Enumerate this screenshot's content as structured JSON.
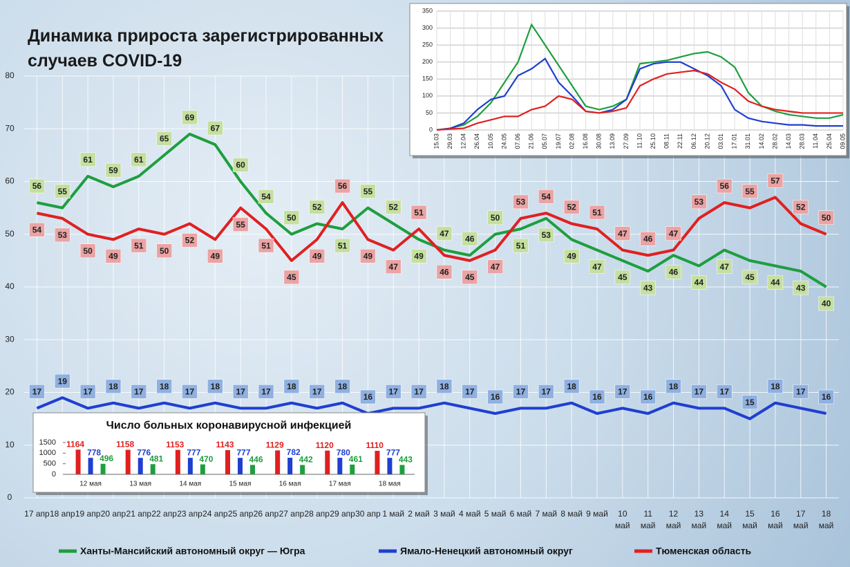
{
  "chart_data": [
    {
      "type": "line",
      "title": "Динамика прироста зарегистрированных случаев COVID-19",
      "categories": [
        "17 апр",
        "18 апр",
        "19 апр",
        "20 апр",
        "21 апр",
        "22 апр",
        "23 апр",
        "24 апр",
        "25 апр",
        "26 апр",
        "27 апр",
        "28 апр",
        "29 апр",
        "30 апр",
        "1 май",
        "2 май",
        "3 май",
        "4 май",
        "5 май",
        "6 май",
        "7 май",
        "8 май",
        "9 май",
        "10 май",
        "11 май",
        "12 май",
        "13 май",
        "14 май",
        "15 май",
        "16 май",
        "17 май",
        "18 май"
      ],
      "series": [
        {
          "name": "Ханты-Мансийский автономный округ — Югра",
          "color": "#1e9e3e",
          "values": [
            56,
            55,
            61,
            59,
            61,
            65,
            69,
            67,
            60,
            54,
            50,
            52,
            51,
            55,
            52,
            49,
            47,
            46,
            50,
            51,
            53,
            49,
            47,
            45,
            43,
            46,
            44,
            47,
            45,
            44,
            43,
            40
          ]
        },
        {
          "name": "Ямало-Ненецкий автономный округ",
          "color": "#1f3fd0",
          "values": [
            17,
            19,
            17,
            18,
            17,
            18,
            17,
            18,
            17,
            17,
            18,
            17,
            18,
            16,
            17,
            17,
            18,
            17,
            16,
            17,
            17,
            18,
            16,
            17,
            16,
            18,
            17,
            17,
            15,
            18,
            17,
            16
          ]
        },
        {
          "name": "Тюменская область",
          "color": "#e02020",
          "values": [
            54,
            53,
            50,
            49,
            51,
            50,
            52,
            49,
            55,
            51,
            45,
            49,
            56,
            49,
            47,
            51,
            46,
            45,
            47,
            53,
            54,
            52,
            51,
            47,
            46,
            47,
            53,
            56,
            55,
            57,
            52,
            50
          ]
        }
      ],
      "ylim": [
        0,
        80
      ],
      "yticks": [
        0,
        10,
        20,
        30,
        40,
        50,
        60,
        70,
        80
      ],
      "grid": true,
      "legend": "bottom"
    },
    {
      "type": "line",
      "categories": [
        "15.03",
        "29.03",
        "12.04",
        "26.04",
        "10.05",
        "24.05",
        "07.06",
        "21.06",
        "05.07",
        "19.07",
        "02.08",
        "16.08",
        "30.08",
        "13.09",
        "27.09",
        "11.10",
        "25.10",
        "08.11",
        "22.11",
        "06.12",
        "20.12",
        "03.01",
        "17.01",
        "31.01",
        "14.02",
        "28.02",
        "14.03",
        "28.03",
        "11.04",
        "25.04",
        "09.05"
      ],
      "series": [
        {
          "color": "#1e9e3e",
          "values": [
            0,
            5,
            15,
            40,
            80,
            140,
            200,
            310,
            250,
            190,
            130,
            70,
            60,
            70,
            90,
            195,
            200,
            205,
            215,
            225,
            230,
            215,
            185,
            110,
            70,
            55,
            45,
            40,
            35,
            35,
            45
          ]
        },
        {
          "color": "#1f3fd0",
          "values": [
            0,
            5,
            20,
            60,
            90,
            100,
            160,
            180,
            210,
            140,
            100,
            55,
            50,
            60,
            90,
            180,
            195,
            200,
            200,
            180,
            160,
            130,
            60,
            35,
            25,
            20,
            15,
            15,
            12,
            12,
            12
          ]
        },
        {
          "color": "#e02020",
          "values": [
            0,
            3,
            5,
            20,
            30,
            40,
            40,
            60,
            70,
            100,
            90,
            55,
            50,
            55,
            65,
            130,
            150,
            165,
            170,
            175,
            165,
            140,
            120,
            85,
            70,
            60,
            55,
            50,
            50,
            50,
            50
          ]
        }
      ],
      "ylim": [
        0,
        350
      ],
      "yticks": [
        0,
        50,
        100,
        150,
        200,
        250,
        300,
        350
      ],
      "grid": true
    },
    {
      "type": "bar",
      "title": "Число больных коронавирусной инфекцией",
      "categories": [
        "12 мая",
        "13 мая",
        "14 мая",
        "15 мая",
        "16 мая",
        "17 мая",
        "18 мая"
      ],
      "series": [
        {
          "color": "#e02020",
          "values": [
            1164,
            1158,
            1153,
            1143,
            1129,
            1120,
            1110
          ]
        },
        {
          "color": "#1f3fd0",
          "values": [
            778,
            776,
            777,
            777,
            782,
            780,
            777
          ]
        },
        {
          "color": "#1e9e3e",
          "values": [
            496,
            481,
            470,
            446,
            442,
            461,
            443
          ]
        }
      ],
      "ylim": [
        0,
        1500
      ],
      "yticks": [
        0,
        500,
        1000,
        1500
      ]
    }
  ]
}
